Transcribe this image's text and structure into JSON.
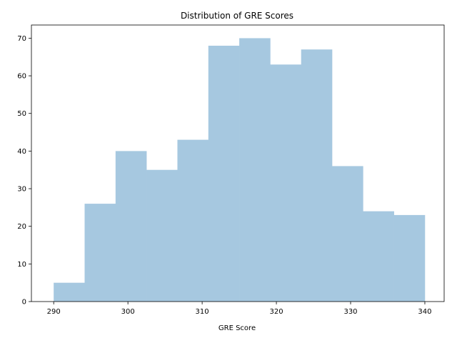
{
  "chart_data": {
    "type": "bar",
    "title": "Distribution of GRE Scores",
    "xlabel": "GRE Score",
    "ylabel": "",
    "bin_edges": [
      290,
      294.1667,
      298.3333,
      302.5,
      306.6667,
      310.8333,
      315,
      319.1667,
      323.3333,
      327.5,
      331.6667,
      335.8333,
      340
    ],
    "values": [
      5,
      26,
      40,
      35,
      43,
      68,
      70,
      63,
      67,
      36,
      24,
      23
    ],
    "xlim": [
      287,
      342.6
    ],
    "ylim": [
      0,
      73.5
    ],
    "x_ticks": [
      290,
      300,
      310,
      320,
      330,
      340
    ],
    "y_ticks": [
      0,
      10,
      20,
      30,
      40,
      50,
      60,
      70
    ],
    "bar_color": "#a6c8e0",
    "grid": false,
    "legend": "none"
  }
}
